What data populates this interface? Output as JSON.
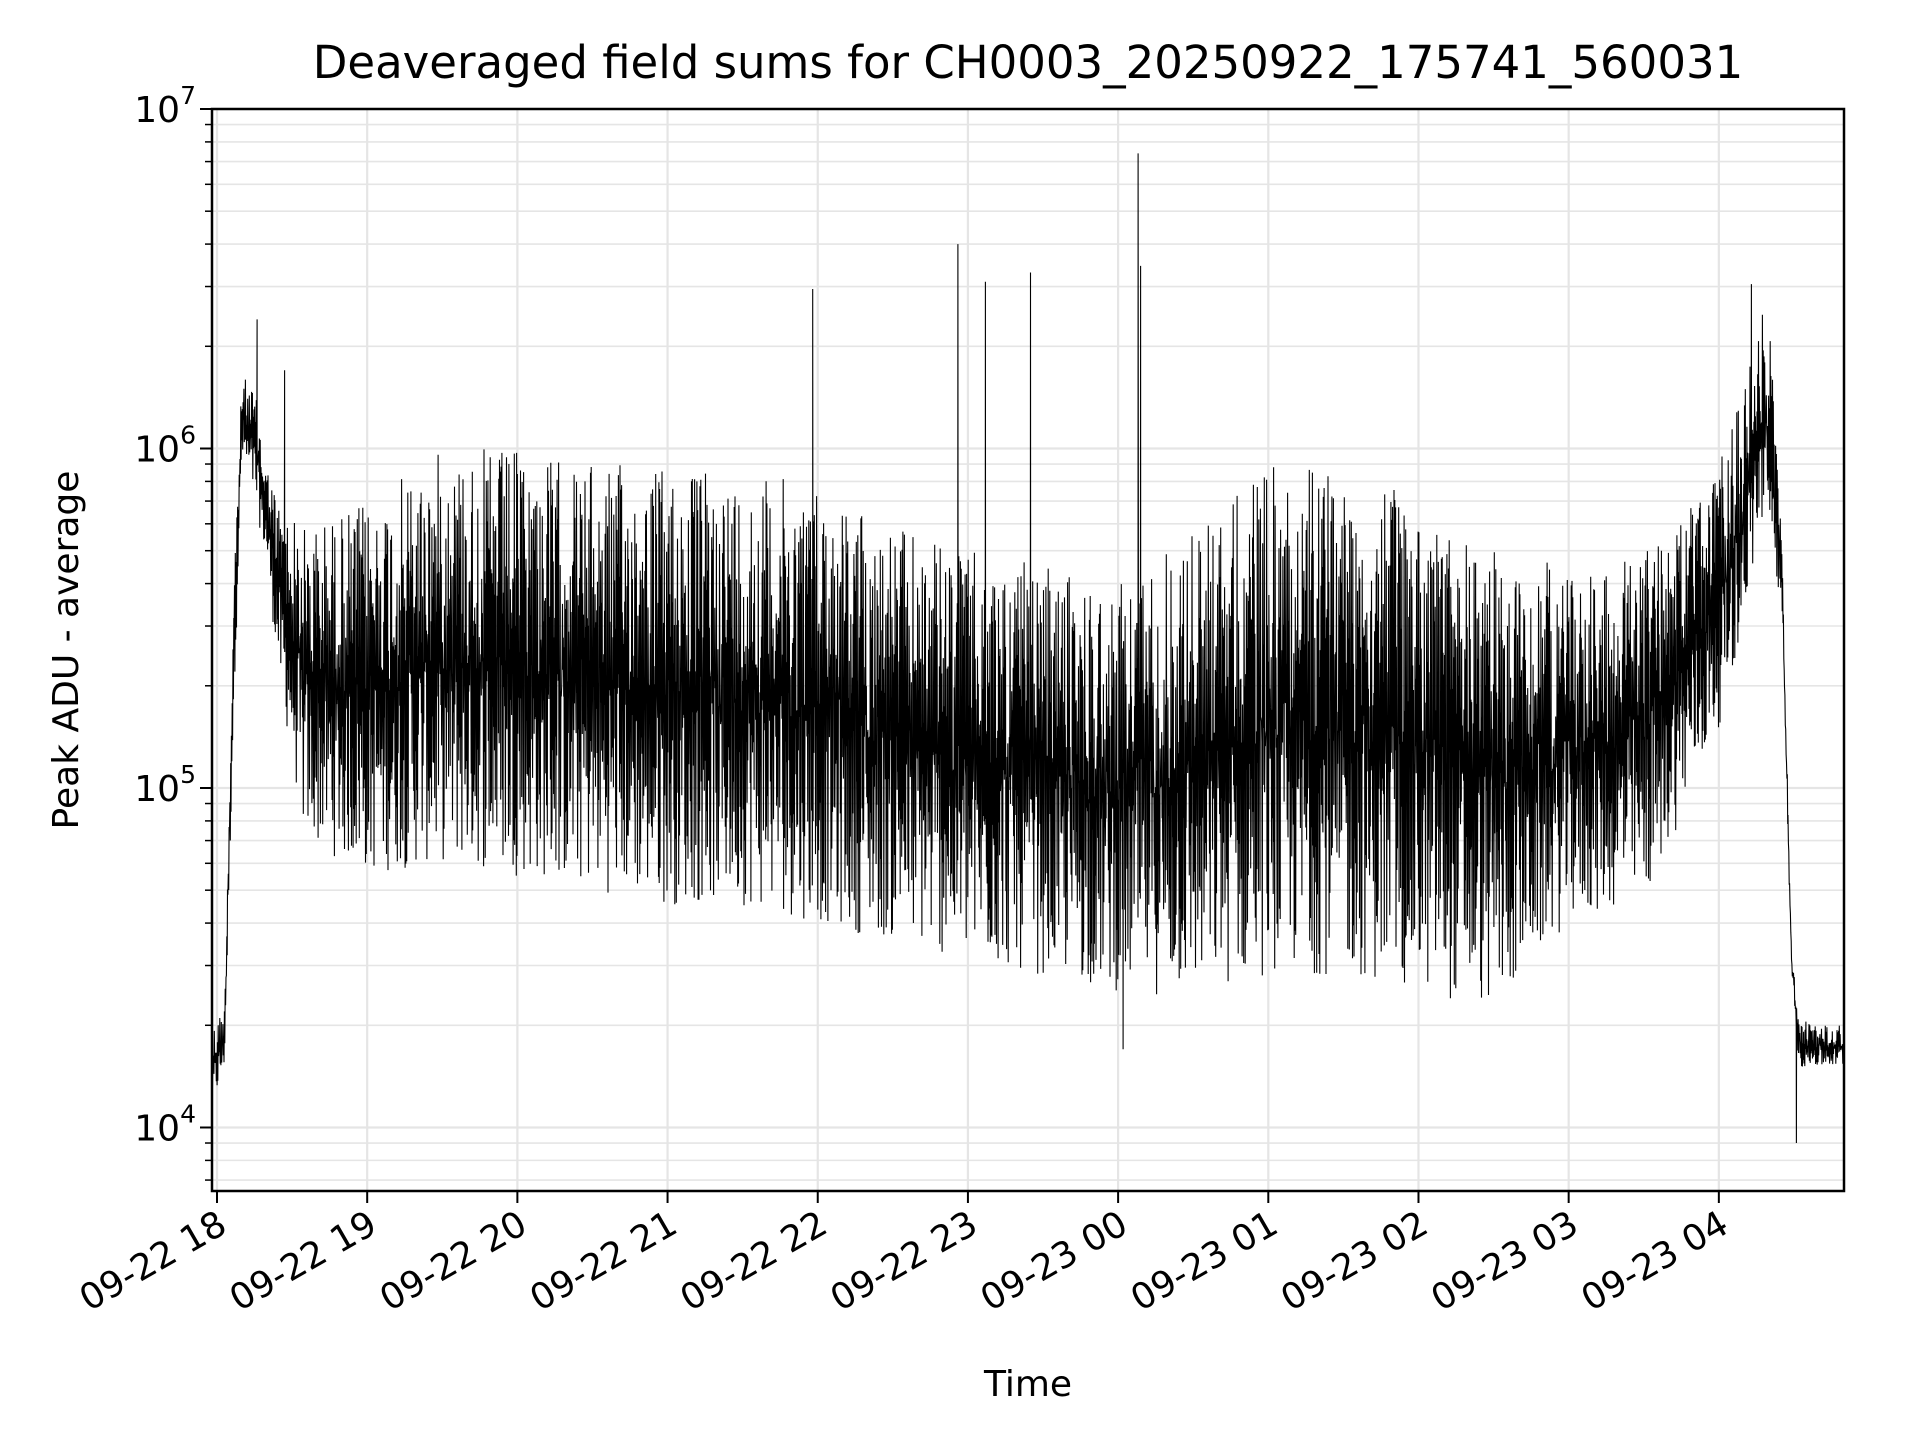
{
  "chart_data": {
    "type": "line",
    "title": "Deaveraged field sums for CH0003_20250922_175741_560031",
    "xlabel": "Time",
    "ylabel": "Peak ADU - average",
    "yscale": "log",
    "ylim": [
      6500,
      10000000
    ],
    "xlim": [
      "2025-09-22 17:58",
      "2025-09-23 04:50"
    ],
    "grid": true,
    "line_color": "#000000",
    "grid_color": "#e5e5e5",
    "x_ticks": [
      {
        "label": "09-22 18",
        "time": "2025-09-22 18:00"
      },
      {
        "label": "09-22 19",
        "time": "2025-09-22 19:00"
      },
      {
        "label": "09-22 20",
        "time": "2025-09-22 20:00"
      },
      {
        "label": "09-22 21",
        "time": "2025-09-22 21:00"
      },
      {
        "label": "09-22 22",
        "time": "2025-09-22 22:00"
      },
      {
        "label": "09-22 23",
        "time": "2025-09-22 23:00"
      },
      {
        "label": "09-23 00",
        "time": "2025-09-23 00:00"
      },
      {
        "label": "09-23 01",
        "time": "2025-09-23 01:00"
      },
      {
        "label": "09-23 02",
        "time": "2025-09-23 02:00"
      },
      {
        "label": "09-23 03",
        "time": "2025-09-23 03:00"
      },
      {
        "label": "09-23 04",
        "time": "2025-09-23 04:00"
      }
    ],
    "y_ticks": [
      {
        "base": "10",
        "exp": "4",
        "value": 10000
      },
      {
        "base": "10",
        "exp": "5",
        "value": 100000
      },
      {
        "base": "10",
        "exp": "6",
        "value": 1000000
      },
      {
        "base": "10",
        "exp": "7",
        "value": 10000000
      }
    ],
    "envelope": [
      {
        "time": "2025-09-22 17:58",
        "low": 11000,
        "high": 20000
      },
      {
        "time": "2025-09-22 18:03",
        "low": 15000,
        "high": 23000
      },
      {
        "time": "2025-09-22 18:07",
        "low": 200000,
        "high": 500000
      },
      {
        "time": "2025-09-22 18:10",
        "low": 900000,
        "high": 1650000
      },
      {
        "time": "2025-09-22 18:15",
        "low": 700000,
        "high": 1500000
      },
      {
        "time": "2025-09-22 18:20",
        "low": 450000,
        "high": 900000
      },
      {
        "time": "2025-09-22 18:25",
        "low": 200000,
        "high": 700000
      },
      {
        "time": "2025-09-22 18:35",
        "low": 70000,
        "high": 600000
      },
      {
        "time": "2025-09-22 19:00",
        "low": 55000,
        "high": 700000
      },
      {
        "time": "2025-09-22 19:30",
        "low": 60000,
        "high": 1000000
      },
      {
        "time": "2025-09-22 20:00",
        "low": 55000,
        "high": 1000000
      },
      {
        "time": "2025-09-22 20:30",
        "low": 50000,
        "high": 900000
      },
      {
        "time": "2025-09-22 21:00",
        "low": 45000,
        "high": 900000
      },
      {
        "time": "2025-09-22 21:30",
        "low": 45000,
        "high": 850000
      },
      {
        "time": "2025-09-22 22:00",
        "low": 40000,
        "high": 800000
      },
      {
        "time": "2025-09-22 22:30",
        "low": 35000,
        "high": 600000
      },
      {
        "time": "2025-09-22 23:00",
        "low": 30000,
        "high": 500000
      },
      {
        "time": "2025-09-22 23:30",
        "low": 28000,
        "high": 450000
      },
      {
        "time": "2025-09-23 00:00",
        "low": 25000,
        "high": 400000
      },
      {
        "time": "2025-09-23 00:30",
        "low": 24000,
        "high": 600000
      },
      {
        "time": "2025-09-23 01:00",
        "low": 28000,
        "high": 900000
      },
      {
        "time": "2025-09-23 01:30",
        "low": 28000,
        "high": 900000
      },
      {
        "time": "2025-09-23 02:00",
        "low": 25000,
        "high": 700000
      },
      {
        "time": "2025-09-23 02:30",
        "low": 22000,
        "high": 500000
      },
      {
        "time": "2025-09-23 03:00",
        "low": 40000,
        "high": 450000
      },
      {
        "time": "2025-09-23 03:30",
        "low": 45000,
        "high": 500000
      },
      {
        "time": "2025-09-23 03:50",
        "low": 100000,
        "high": 700000
      },
      {
        "time": "2025-09-23 04:00",
        "low": 150000,
        "high": 900000
      },
      {
        "time": "2025-09-23 04:10",
        "low": 300000,
        "high": 1500000
      },
      {
        "time": "2025-09-23 04:17",
        "low": 600000,
        "high": 2500000
      },
      {
        "time": "2025-09-23 04:20",
        "low": 500000,
        "high": 2400000
      },
      {
        "time": "2025-09-23 04:25",
        "low": 350000,
        "high": 600000
      },
      {
        "time": "2025-09-23 04:29",
        "low": 30000,
        "high": 33000
      },
      {
        "time": "2025-09-23 04:32",
        "low": 15000,
        "high": 21000
      },
      {
        "time": "2025-09-23 04:40",
        "low": 15000,
        "high": 20000
      },
      {
        "time": "2025-09-23 04:50",
        "low": 15000,
        "high": 20000
      }
    ],
    "spikes": [
      {
        "time": "2025-09-22 18:16",
        "value": 2400000
      },
      {
        "time": "2025-09-22 18:27",
        "value": 1700000
      },
      {
        "time": "2025-09-22 21:58",
        "value": 2950000
      },
      {
        "time": "2025-09-22 22:56",
        "value": 4000000
      },
      {
        "time": "2025-09-22 23:07",
        "value": 3100000
      },
      {
        "time": "2025-09-22 23:25",
        "value": 3300000
      },
      {
        "time": "2025-09-23 00:08",
        "value": 7400000
      },
      {
        "time": "2025-09-23 00:09",
        "value": 3450000
      },
      {
        "time": "2025-09-23 00:02",
        "value": 17000
      },
      {
        "time": "2025-09-23 04:13",
        "value": 3050000
      },
      {
        "time": "2025-09-23 04:31",
        "value": 9000
      }
    ]
  }
}
